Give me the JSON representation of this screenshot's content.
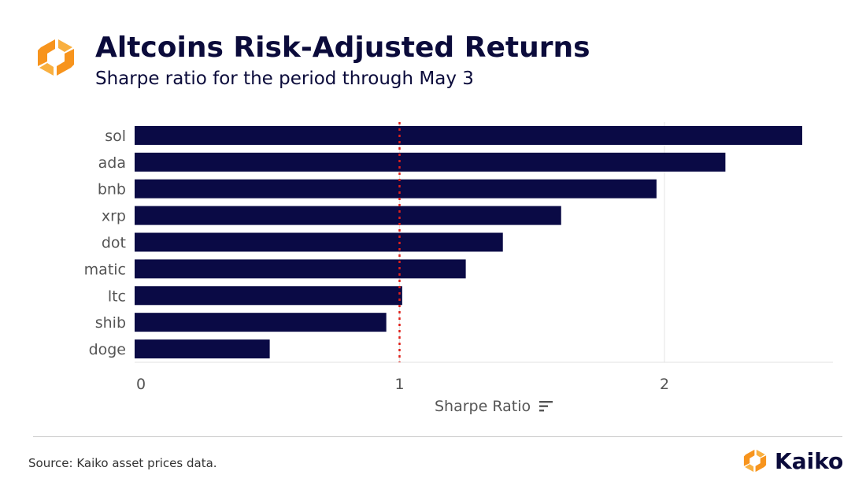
{
  "header": {
    "title": "Altcoins Risk-Adjusted Returns",
    "subtitle": "Sharpe ratio for the period through May 3"
  },
  "footer": {
    "source": "Source: Kaiko asset prices data.",
    "brand_name": "Kaiko"
  },
  "colors": {
    "bar": "#0a0a45",
    "reference_line": "#e0201a",
    "logo_orange": "#f7941d",
    "grid": "#e6e6e6",
    "title": "#0b0b3b"
  },
  "icons": {
    "logo": "kaiko-logo-icon",
    "sort": "sort-icon"
  },
  "chart_data": {
    "type": "bar",
    "orientation": "horizontal",
    "categories": [
      "sol",
      "ada",
      "bnb",
      "xrp",
      "dot",
      "matic",
      "ltc",
      "shib",
      "doge"
    ],
    "values": [
      2.52,
      2.23,
      1.97,
      1.61,
      1.39,
      1.25,
      1.01,
      0.95,
      0.51
    ],
    "title": "Altcoins Risk-Adjusted Returns",
    "subtitle": "Sharpe ratio for the period through May 3",
    "xlabel": "Sharpe Ratio",
    "ylabel": "",
    "xlim": [
      0,
      2.65
    ],
    "xticks": [
      0,
      1,
      2
    ],
    "xtick_labels": [
      "0",
      "1",
      "2"
    ],
    "reference_line": {
      "value": 1,
      "style": "dotted"
    },
    "grid": true,
    "legend": "none"
  }
}
